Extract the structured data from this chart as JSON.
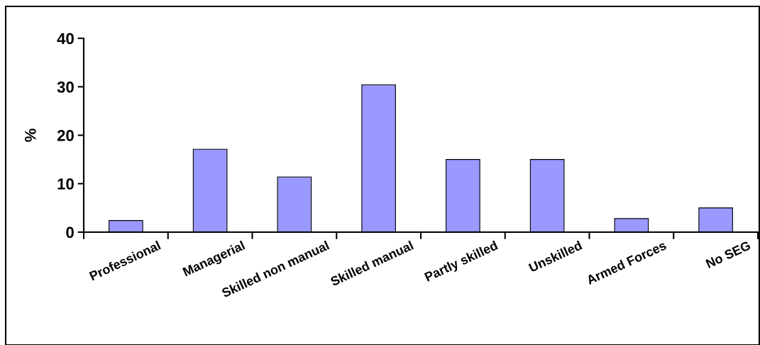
{
  "chart_data": {
    "type": "bar",
    "ylabel": "%",
    "categories": [
      "Professional",
      "Managerial",
      "Skilled non manual",
      "Skilled manual",
      "Partly skilled",
      "Unskilled",
      "Armed Forces",
      "No SEG"
    ],
    "values": [
      2.4,
      17.1,
      11.4,
      30.4,
      15.0,
      15.0,
      2.8,
      5.0
    ],
    "color": "#9999ff",
    "ylim": [
      0,
      40
    ],
    "yticks": [
      0,
      10,
      20,
      30,
      40
    ],
    "grid": false,
    "legend": false
  }
}
